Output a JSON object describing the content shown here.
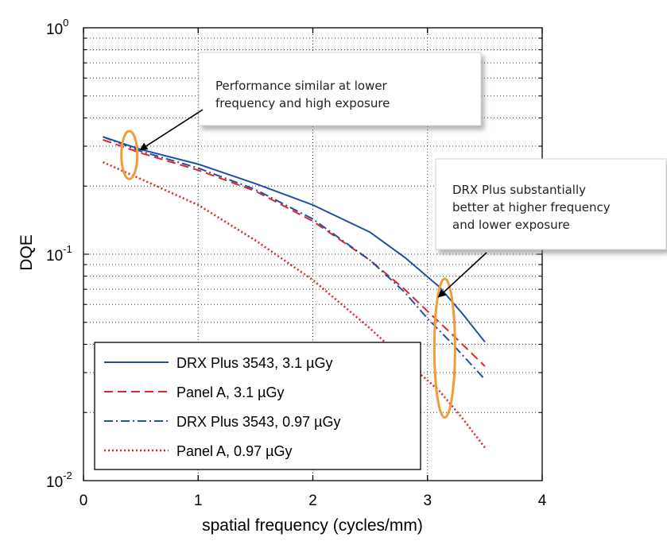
{
  "chart_data": {
    "type": "line",
    "title": "",
    "xlabel": "spatial frequency (cycles/mm)",
    "ylabel": "DQE",
    "xlim": [
      0,
      4
    ],
    "ylim": [
      0.01,
      1
    ],
    "yscale": "log",
    "grid": true,
    "x_ticks": [
      "0",
      "1",
      "2",
      "3",
      "4"
    ],
    "y_ticks": [
      {
        "base": "10",
        "exp": "0",
        "value": 1
      },
      {
        "base": "10",
        "exp": "-1",
        "value": 0.1
      },
      {
        "base": "10",
        "exp": "-2",
        "value": 0.01
      }
    ],
    "legend_position": "bottom-left",
    "series": [
      {
        "name": "DRX Plus 3543, 3.1 µGy",
        "color": "#1f4fa8",
        "style": "solid",
        "x": [
          0.17,
          0.5,
          1.0,
          1.5,
          2.0,
          2.5,
          2.8,
          3.1,
          3.3,
          3.5
        ],
        "y": [
          0.33,
          0.29,
          0.25,
          0.205,
          0.165,
          0.125,
          0.097,
          0.072,
          0.055,
          0.041
        ]
      },
      {
        "name": "Panel A, 3.1 µGy",
        "color": "#e0262b",
        "style": "dashed",
        "x": [
          0.17,
          0.5,
          1.0,
          1.5,
          2.0,
          2.5,
          2.8,
          3.0,
          3.2,
          3.5
        ],
        "y": [
          0.32,
          0.28,
          0.235,
          0.19,
          0.14,
          0.094,
          0.07,
          0.056,
          0.045,
          0.032
        ]
      },
      {
        "name": "DRX Plus 3543, 0.97 µGy",
        "color": "#1f4fa8",
        "style": "dashdot",
        "x": [
          0.17,
          0.5,
          1.0,
          1.5,
          2.0,
          2.5,
          2.8,
          3.0,
          3.2,
          3.5
        ],
        "y": [
          0.33,
          0.285,
          0.24,
          0.193,
          0.143,
          0.094,
          0.068,
          0.052,
          0.041,
          0.028
        ]
      },
      {
        "name": "Panel A, 0.97 µGy",
        "color": "#e0262b",
        "style": "dotted",
        "x": [
          0.17,
          0.5,
          1.0,
          1.5,
          2.0,
          2.5,
          2.8,
          3.1,
          3.3,
          3.5
        ],
        "y": [
          0.255,
          0.215,
          0.165,
          0.115,
          0.077,
          0.047,
          0.034,
          0.025,
          0.019,
          0.014
        ]
      }
    ],
    "annotations": [
      {
        "text_lines": [
          "Performance similar at lower",
          "frequency and high exposure"
        ],
        "target": {
          "x": 0.5,
          "y": 0.29
        }
      },
      {
        "text_lines": [
          "DRX Plus substantially",
          "better at higher frequency",
          "and lower exposure"
        ],
        "target": {
          "x": 3.1,
          "y": 0.065
        }
      }
    ],
    "highlights": [
      {
        "x": 0.4,
        "y_low": 0.215,
        "y_high": 0.35,
        "color": "#f39a3a"
      },
      {
        "x": 3.15,
        "y_low": 0.019,
        "y_high": 0.078,
        "color": "#f39a3a"
      }
    ]
  }
}
